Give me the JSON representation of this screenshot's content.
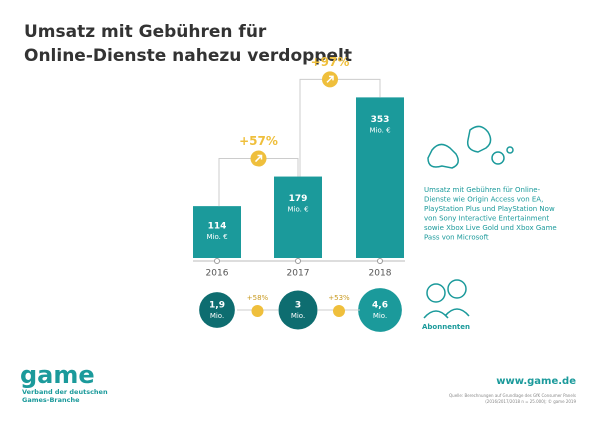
{
  "chart_data": {
    "type": "bar",
    "title_lines": [
      "Umsatz mit Gebühren für",
      "Online-Dienste nahezu verdoppelt"
    ],
    "categories": [
      "2016",
      "2017",
      "2018"
    ],
    "values": [
      114,
      179,
      353
    ],
    "unit": "Mio. €",
    "color": "#1b9a9b",
    "growth": [
      {
        "value": 57,
        "label": "+57%"
      },
      {
        "value": 97,
        "label": "+97%"
      }
    ],
    "growth_color": "#efbf3c",
    "description_lines": [
      "Umsatz mit Gebühren für Online-",
      "Dienste wie Origin Access von EA,",
      "PlayStation Plus und PlayStation Now",
      "von Sony Interactive Entertainment",
      "sowie Xbox Live Gold und Xbox Game",
      "Pass von Microsoft"
    ],
    "subscribers": {
      "name": "Abonnenten",
      "values": [
        1.9,
        3,
        4.6
      ],
      "value_labels": [
        "1,9",
        "3",
        "4,6"
      ],
      "unit": "Mio.",
      "colors": [
        "#0e6d70",
        "#0e6d70",
        "#1b9a9b"
      ],
      "growth": [
        {
          "value": 58,
          "label": "+58%"
        },
        {
          "value": 53,
          "label": "+53%"
        }
      ]
    }
  },
  "footer": {
    "logo": "game",
    "org_lines": [
      "Verband der deutschen",
      "Games-Branche"
    ],
    "url": "www.game.de",
    "source_lines": [
      "Quelle: Berechnungen auf Grundlage des GfK Consumer Panels",
      "(2016/2017/2018 n = 25.000); © game 2019"
    ]
  }
}
